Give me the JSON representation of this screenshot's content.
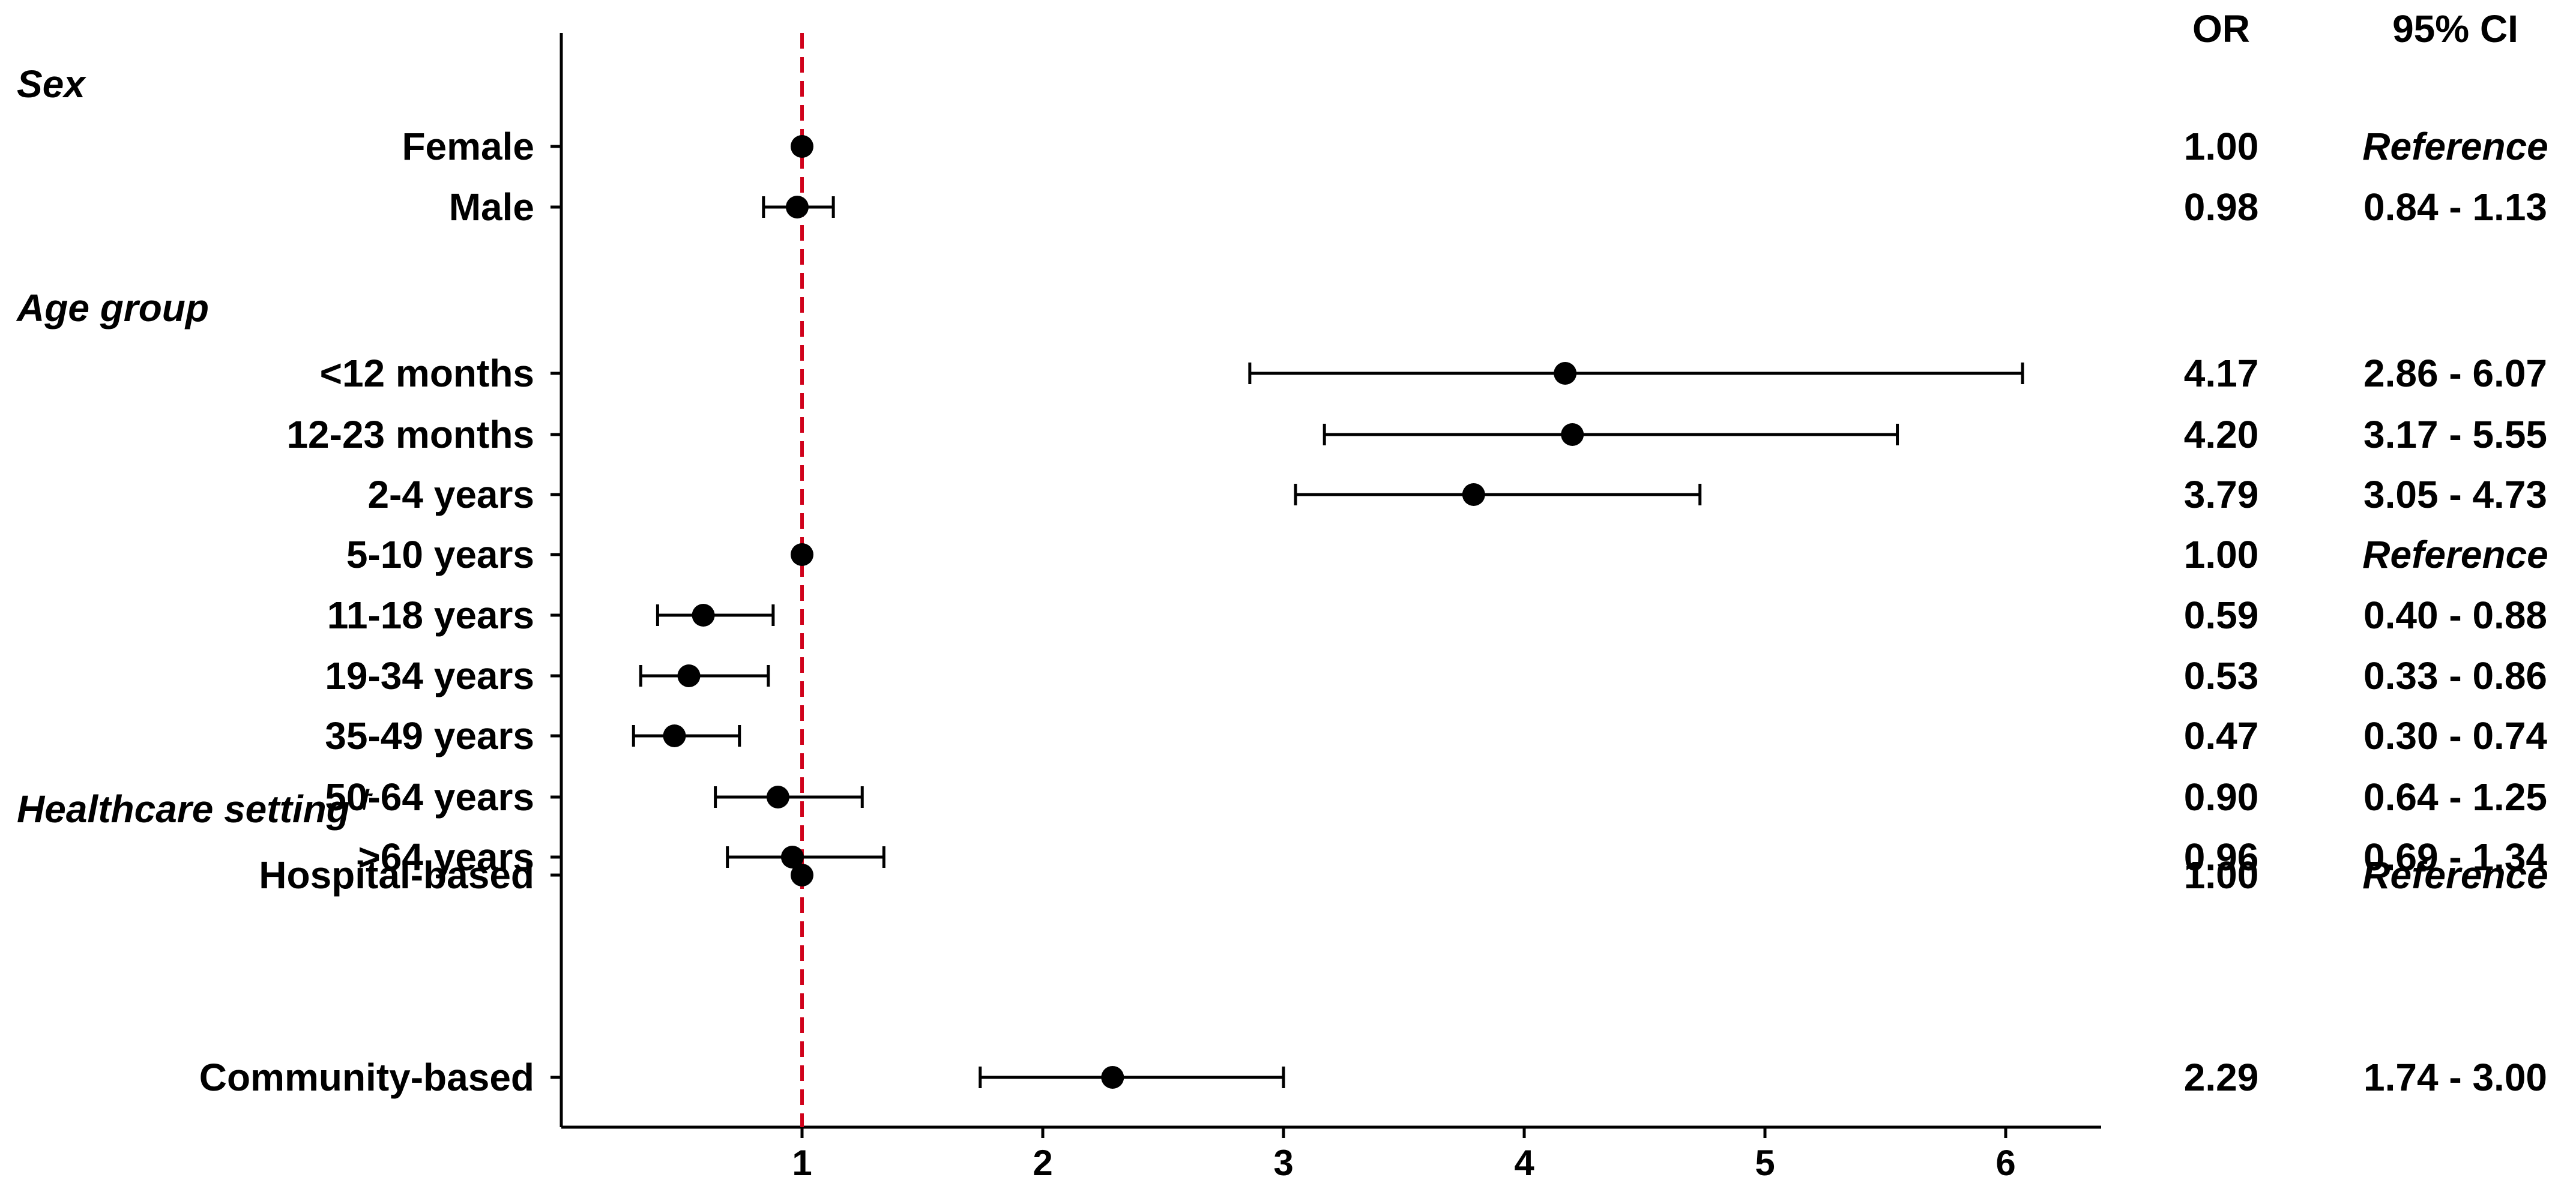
{
  "chart_data": {
    "type": "forest",
    "column_headers": {
      "or": "OR",
      "ci": "95% CI"
    },
    "xlim": [
      0.0,
      6.35
    ],
    "xticks": [
      1,
      2,
      3,
      4,
      5,
      6
    ],
    "reference_line": {
      "x": 1,
      "style": "dashed",
      "color": "#d0021b"
    },
    "point_color": "#000000",
    "groups": [
      {
        "title": "Sex",
        "rows": [
          {
            "label": "Female",
            "or": 1.0,
            "lo": null,
            "hi": null,
            "or_text": "1.00",
            "ci_text": "Reference"
          },
          {
            "label": "Male",
            "or": 0.98,
            "lo": 0.84,
            "hi": 1.13,
            "or_text": "0.98",
            "ci_text": "0.84 - 1.13"
          }
        ]
      },
      {
        "title": "Age group",
        "rows": [
          {
            "label": "<12 months",
            "or": 4.17,
            "lo": 2.86,
            "hi": 6.07,
            "or_text": "4.17",
            "ci_text": "2.86 - 6.07"
          },
          {
            "label": "12-23 months",
            "or": 4.2,
            "lo": 3.17,
            "hi": 5.55,
            "or_text": "4.20",
            "ci_text": "3.17 - 5.55"
          },
          {
            "label": "2-4 years",
            "or": 3.79,
            "lo": 3.05,
            "hi": 4.73,
            "or_text": "3.79",
            "ci_text": "3.05 - 4.73"
          },
          {
            "label": "5-10 years",
            "or": 1.0,
            "lo": null,
            "hi": null,
            "or_text": "1.00",
            "ci_text": "Reference"
          },
          {
            "label": "11-18 years",
            "or": 0.59,
            "lo": 0.4,
            "hi": 0.88,
            "or_text": "0.59",
            "ci_text": "0.40 - 0.88"
          },
          {
            "label": "19-34 years",
            "or": 0.53,
            "lo": 0.33,
            "hi": 0.86,
            "or_text": "0.53",
            "ci_text": "0.33 - 0.86"
          },
          {
            "label": "35-49 years",
            "or": 0.47,
            "lo": 0.3,
            "hi": 0.74,
            "or_text": "0.47",
            "ci_text": "0.30 - 0.74"
          },
          {
            "label": "50-64 years",
            "or": 0.9,
            "lo": 0.64,
            "hi": 1.25,
            "or_text": "0.90",
            "ci_text": "0.64 - 1.25"
          },
          {
            "label": ">64 years",
            "or": 0.96,
            "lo": 0.69,
            "hi": 1.34,
            "or_text": "0.96",
            "ci_text": "0.69 - 1.34"
          }
        ]
      },
      {
        "title": "Healthcare setting",
        "title_mark": "†",
        "rows": [
          {
            "label": "Hospital-based",
            "or": 1.0,
            "lo": null,
            "hi": null,
            "or_text": "1.00",
            "ci_text": "Reference"
          },
          {
            "label": "Community-based",
            "or": 2.29,
            "lo": 1.74,
            "hi": 3.0,
            "or_text": "2.29",
            "ci_text": "1.74 - 3.00"
          }
        ]
      }
    ]
  }
}
